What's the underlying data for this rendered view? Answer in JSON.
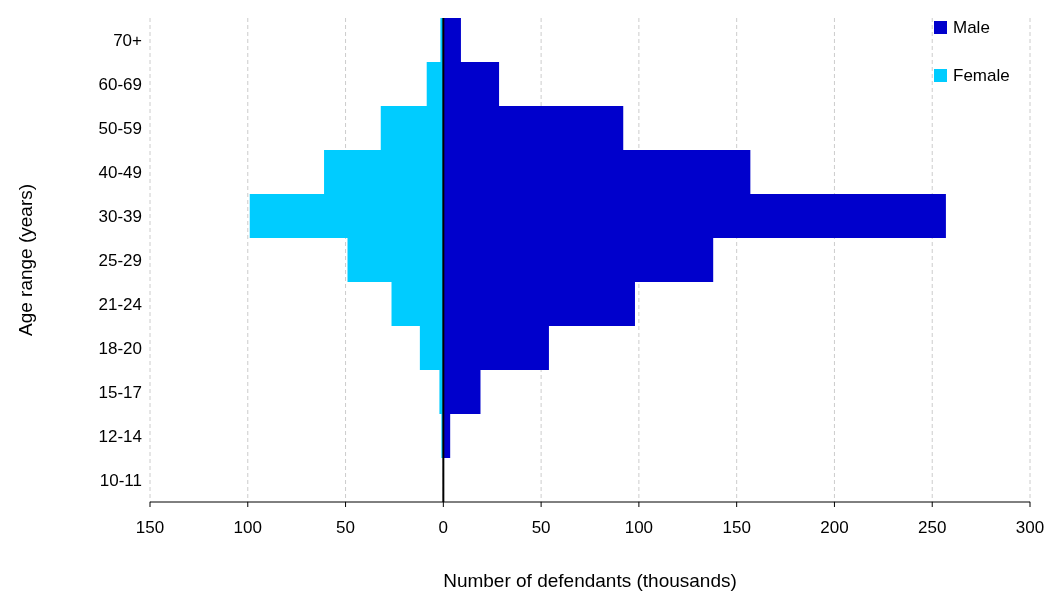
{
  "chart_data": {
    "type": "bar",
    "orientation": "horizontal",
    "stacked": true,
    "xlabel": "Number of defendants  (thousands)",
    "ylabel": "Age range  (years)",
    "categories": [
      "70+",
      "60-69",
      "50-59",
      "40-49",
      "30-39",
      "25-29",
      "21-24",
      "18-20",
      "15-17",
      "12-14",
      "10-11"
    ],
    "series": [
      {
        "name": "Male",
        "color": "#0000cc",
        "values": [
          9,
          28.5,
          92,
          157,
          257,
          138,
          98,
          54,
          19,
          3.5,
          null
        ]
      },
      {
        "name": "Female",
        "color": "#00ccff",
        "values": [
          -1.5,
          -8.5,
          -32,
          -61,
          -99,
          -49,
          -26.5,
          -12,
          -2,
          -1,
          null
        ]
      }
    ],
    "xlim": [
      -150,
      300
    ],
    "xticks": [
      {
        "value": -150,
        "label": "150"
      },
      {
        "value": -100,
        "label": "100"
      },
      {
        "value": -50,
        "label": "50"
      },
      0,
      50,
      100,
      150,
      200,
      250,
      300
    ],
    "grid": "x",
    "legend": "top right"
  }
}
